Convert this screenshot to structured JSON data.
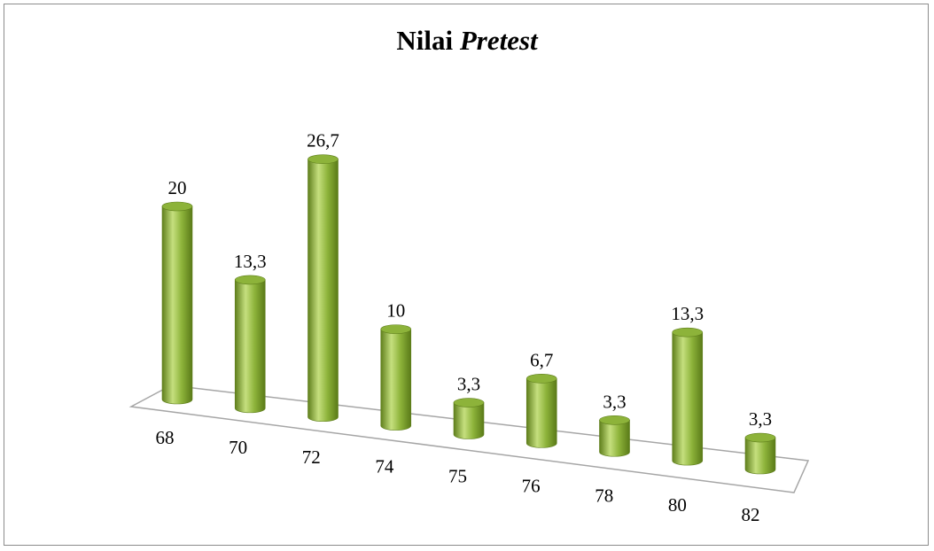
{
  "chart_data": {
    "type": "bar",
    "title_plain": "Nilai",
    "title_italic": "Pretest",
    "categories": [
      "68",
      "70",
      "72",
      "74",
      "75",
      "76",
      "78",
      "80",
      "82"
    ],
    "values": [
      20,
      13.3,
      26.7,
      10,
      3.3,
      6.7,
      3.3,
      13.3,
      3.3
    ],
    "value_labels": [
      "20",
      "13,3",
      "26,7",
      "10",
      "3,3",
      "6,7",
      "3,3",
      "13,3",
      "3,3"
    ],
    "bar_color": "#8db33a",
    "bar_highlight": "#c5df7e",
    "bar_shadow": "#5f7f1c",
    "floor_color": "#a6a6a6",
    "grid": false,
    "legend": "none"
  }
}
